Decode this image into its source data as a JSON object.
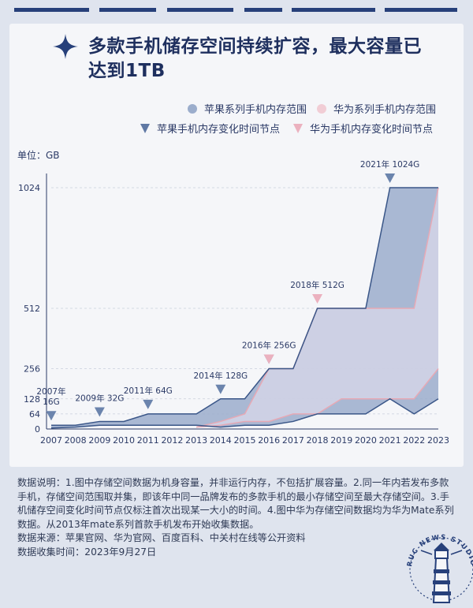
{
  "header": {
    "title_line1": "多款手机储存空间持续扩容，最大容量已",
    "title_line2": "达到1TB"
  },
  "legend": {
    "apple_range": "苹果系列手机内存范围",
    "huawei_range": "华为系列手机内存范围",
    "apple_node": "苹果手机内存变化时间节点",
    "huawei_node": "华为手机内存变化时间节点"
  },
  "colors": {
    "apple_fill": "#9badcc",
    "apple_line": "#3a5688",
    "huawei_fill": "#d4d3e6",
    "huawei_line": "#e6a9b5",
    "apple_marker": "#6b84ad",
    "huawei_marker": "#ebb1bf",
    "title": "#1e2f5e",
    "star": "#27407a"
  },
  "chart_data": {
    "type": "area",
    "unit_label": "单位：GB",
    "x": [
      2007,
      2008,
      2009,
      2010,
      2011,
      2012,
      2013,
      2014,
      2015,
      2016,
      2017,
      2018,
      2019,
      2020,
      2021,
      2022,
      2023
    ],
    "y_ticks": [
      0,
      64,
      128,
      256,
      512,
      1024
    ],
    "series": [
      {
        "name": "苹果系列手机内存范围",
        "points": [
          [
            2007,
            4,
            16
          ],
          [
            2008,
            8,
            16
          ],
          [
            2009,
            16,
            32
          ],
          [
            2010,
            16,
            32
          ],
          [
            2011,
            16,
            64
          ],
          [
            2012,
            16,
            64
          ],
          [
            2013,
            16,
            64
          ],
          [
            2014,
            8,
            128
          ],
          [
            2015,
            16,
            128
          ],
          [
            2016,
            16,
            256
          ],
          [
            2017,
            32,
            256
          ],
          [
            2018,
            64,
            512
          ],
          [
            2019,
            64,
            512
          ],
          [
            2020,
            64,
            512
          ],
          [
            2021,
            128,
            1024
          ],
          [
            2022,
            64,
            1024
          ],
          [
            2023,
            128,
            1024
          ]
        ]
      },
      {
        "name": "华为系列手机内存范围",
        "points": [
          [
            2013,
            8,
            8
          ],
          [
            2014,
            16,
            32
          ],
          [
            2015,
            32,
            64
          ],
          [
            2016,
            32,
            256
          ],
          [
            2017,
            64,
            256
          ],
          [
            2018,
            64,
            512
          ],
          [
            2019,
            128,
            512
          ],
          [
            2020,
            128,
            512
          ],
          [
            2021,
            128,
            512
          ],
          [
            2022,
            128,
            512
          ],
          [
            2023,
            256,
            1024
          ]
        ]
      }
    ],
    "apple_markers": [
      {
        "year": 2007,
        "value": 16,
        "label_line1": "2007年",
        "label_line2": "16G"
      },
      {
        "year": 2009,
        "value": 32,
        "label_line1": "2009年 32G"
      },
      {
        "year": 2011,
        "value": 64,
        "label_line1": "2011年 64G"
      },
      {
        "year": 2014,
        "value": 128,
        "label_line1": "2014年 128G"
      },
      {
        "year": 2016,
        "value": 256,
        "label_line1": "2016年 256G"
      },
      {
        "year": 2021,
        "value": 1024,
        "label_line1": "2021年 1024G"
      }
    ],
    "huawei_markers": [
      {
        "year": 2016,
        "value": 256
      },
      {
        "year": 2018,
        "value": 512,
        "label_line1": "2018年 512G"
      }
    ]
  },
  "notes": {
    "explanation": "数据说明：1.图中存储空间数据为机身容量，并非运行内存，不包括扩展容量。2.同一年内若发布多款手机，存储空间范围取并集，即该年中同一品牌发布的多款手机的最小存储空间至最大存储空间。3.手机储存空间变化时间节点仅标注首次出现某一大小的时间。4.图中华为存储空间数据均为华为Mate系列数据。从2013年mate系列首款手机发布开始收集数据。",
    "source": "数据来源：苹果官网、华为官网、百度百科、中关村在线等公开资料",
    "date": "数据收集时间：2023年9月27日"
  },
  "badge": {
    "studio_text": "RUC NEWS STUDIO"
  }
}
